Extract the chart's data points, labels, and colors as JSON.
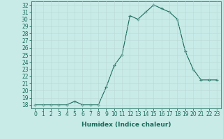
{
  "x": [
    0,
    1,
    2,
    3,
    4,
    5,
    6,
    7,
    8,
    9,
    10,
    11,
    12,
    13,
    14,
    15,
    16,
    17,
    18,
    19,
    20,
    21,
    22,
    23
  ],
  "y": [
    18,
    18,
    18,
    18,
    18,
    18.5,
    18,
    18,
    18,
    20.5,
    23.5,
    25,
    30.5,
    30,
    31,
    32,
    31.5,
    31,
    30,
    25.5,
    23,
    21.5,
    21.5,
    21.5
  ],
  "line_color": "#1a6b5a",
  "marker_color": "#1a6b5a",
  "bg_color": "#c8ebe8",
  "grid_color": "#b8d8d4",
  "xlabel": "Humidex (Indice chaleur)",
  "xlim": [
    -0.5,
    23.5
  ],
  "ylim": [
    17.5,
    32.5
  ],
  "yticks": [
    18,
    19,
    20,
    21,
    22,
    23,
    24,
    25,
    26,
    27,
    28,
    29,
    30,
    31,
    32
  ],
  "xticks": [
    0,
    1,
    2,
    3,
    4,
    5,
    6,
    7,
    8,
    9,
    10,
    11,
    12,
    13,
    14,
    15,
    16,
    17,
    18,
    19,
    20,
    21,
    22,
    23
  ],
  "tick_color": "#1a6b5a",
  "label_color": "#1a6b5a",
  "tick_fontsize": 5.5,
  "xlabel_fontsize": 6.5
}
